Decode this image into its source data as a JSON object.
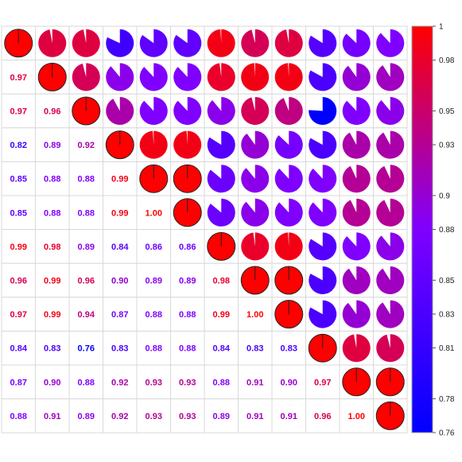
{
  "chart_data": {
    "type": "heatmap",
    "title": "",
    "xlabel": "",
    "ylabel": "",
    "size": 12,
    "upper_glyph": "pie",
    "lower_glyph": "number",
    "color_range": [
      0.76,
      1.0
    ],
    "colors": {
      "low": "#0000ff",
      "mid": "#8000ff",
      "high": "#ff0000"
    },
    "colorbar_ticks": [
      "1",
      "0.98",
      "0.95",
      "0.93",
      "0.9",
      "0.88",
      "0.85",
      "0.83",
      "0.81",
      "0.78",
      "0.76"
    ],
    "colorbar_tick_values": [
      1.0,
      0.98,
      0.95,
      0.93,
      0.9,
      0.88,
      0.85,
      0.83,
      0.81,
      0.78,
      0.76
    ],
    "lower_labels": [
      [],
      [
        "0.97"
      ],
      [
        "0.97",
        "0.96"
      ],
      [
        "0.82",
        "0.89",
        "0.92"
      ],
      [
        "0.85",
        "0.88",
        "0.88",
        "0.99"
      ],
      [
        "0.85",
        "0.88",
        "0.88",
        "0.99",
        "1.00"
      ],
      [
        "0.99",
        "0.98",
        "0.89",
        "0.84",
        "0.86",
        "0.86"
      ],
      [
        "0.96",
        "0.99",
        "0.96",
        "0.90",
        "0.89",
        "0.89",
        "0.98"
      ],
      [
        "0.97",
        "0.99",
        "0.94",
        "0.87",
        "0.88",
        "0.88",
        "0.99",
        "1.00"
      ],
      [
        "0.84",
        "0.83",
        "0.76",
        "0.83",
        "0.88",
        "0.88",
        "0.84",
        "0.83",
        "0.83"
      ],
      [
        "0.87",
        "0.90",
        "0.88",
        "0.92",
        "0.93",
        "0.93",
        "0.88",
        "0.91",
        "0.90",
        "0.97"
      ],
      [
        "0.88",
        "0.91",
        "0.89",
        "0.92",
        "0.93",
        "0.93",
        "0.89",
        "0.91",
        "0.91",
        "0.96",
        "1.00"
      ]
    ],
    "grid": true,
    "legend": "colorbar-right"
  }
}
